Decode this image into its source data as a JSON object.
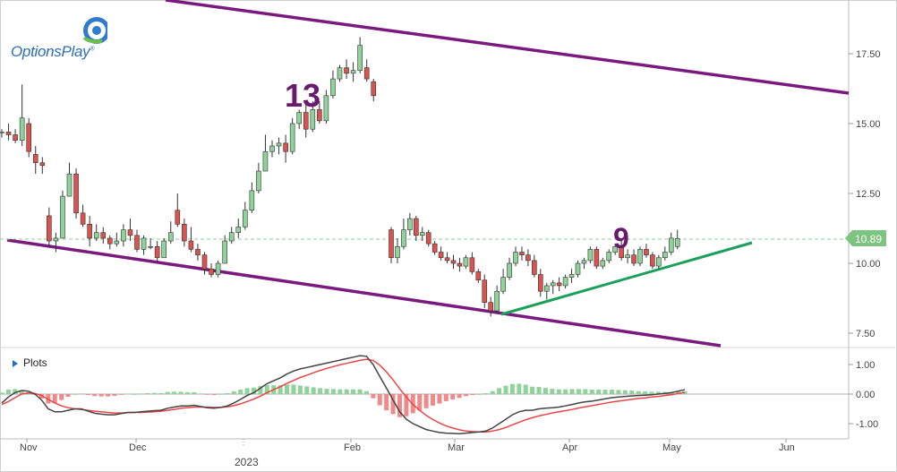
{
  "brand": {
    "name": "OptionsPlay",
    "trademark": "®"
  },
  "panel": {
    "plots_label": "Plots"
  },
  "chart_data": [
    {
      "type": "candlestick",
      "annotations": [
        "13",
        "9"
      ],
      "last_price": 10.89,
      "y_ticks": [
        "7.50",
        "10.00",
        "12.50",
        "15.00",
        "17.50"
      ],
      "ylim": [
        7.0,
        19.0
      ],
      "x_ticks": [
        "Nov",
        "Dec",
        "2023",
        "Feb",
        "Mar",
        "Apr",
        "May",
        "Jun"
      ],
      "year_label": "2023",
      "colors": {
        "up": "#8fd29a",
        "down": "#d9534f",
        "channel": "#7b1a7e",
        "trend": "#1aa05a",
        "last": "#7cc47f"
      },
      "candles": [
        [
          14.7,
          14.8,
          14.5,
          14.7
        ],
        [
          14.7,
          15.0,
          14.4,
          14.6
        ],
        [
          14.6,
          14.8,
          14.3,
          14.4
        ],
        [
          14.4,
          16.4,
          14.2,
          15.2
        ],
        [
          15.0,
          15.2,
          13.8,
          14.0
        ],
        [
          13.9,
          14.2,
          13.2,
          13.6
        ],
        [
          13.6,
          13.8,
          13.2,
          13.5
        ],
        [
          11.7,
          12.0,
          10.6,
          10.8
        ],
        [
          10.8,
          11.1,
          10.4,
          10.9
        ],
        [
          10.9,
          12.6,
          10.9,
          12.4
        ],
        [
          12.4,
          13.6,
          12.4,
          13.2
        ],
        [
          13.2,
          13.4,
          11.6,
          11.8
        ],
        [
          11.8,
          12.1,
          11.3,
          11.4
        ],
        [
          11.4,
          11.7,
          10.6,
          10.9
        ],
        [
          10.9,
          11.4,
          10.8,
          11.1
        ],
        [
          11.1,
          11.3,
          10.7,
          10.9
        ],
        [
          10.9,
          11.0,
          10.5,
          10.7
        ],
        [
          10.7,
          11.1,
          10.6,
          10.8
        ],
        [
          10.8,
          11.4,
          10.6,
          11.2
        ],
        [
          11.2,
          11.6,
          10.8,
          11.0
        ],
        [
          11.0,
          11.2,
          10.4,
          10.5
        ],
        [
          10.5,
          11.0,
          10.3,
          10.9
        ],
        [
          10.6,
          10.9,
          10.5,
          10.6
        ],
        [
          10.6,
          10.8,
          10.0,
          10.2
        ],
        [
          10.2,
          10.9,
          10.2,
          10.8
        ],
        [
          10.8,
          11.5,
          10.7,
          11.1
        ],
        [
          11.9,
          12.5,
          11.3,
          11.4
        ],
        [
          11.4,
          11.6,
          10.6,
          10.8
        ],
        [
          10.8,
          11.3,
          10.4,
          10.5
        ],
        [
          10.5,
          10.7,
          10.1,
          10.3
        ],
        [
          10.3,
          10.4,
          9.6,
          9.8
        ],
        [
          9.8,
          10.0,
          9.5,
          9.6
        ],
        [
          9.6,
          10.1,
          9.5,
          10.0
        ],
        [
          10.0,
          11.0,
          10.0,
          10.8
        ],
        [
          10.8,
          11.3,
          10.7,
          11.1
        ],
        [
          11.1,
          11.6,
          10.9,
          11.3
        ],
        [
          11.3,
          12.2,
          11.2,
          11.9
        ],
        [
          11.9,
          12.9,
          11.8,
          12.6
        ],
        [
          12.6,
          13.6,
          12.5,
          13.3
        ],
        [
          13.3,
          14.6,
          13.3,
          14.0
        ],
        [
          14.0,
          14.4,
          13.8,
          14.2
        ],
        [
          14.2,
          14.5,
          13.9,
          14.3
        ],
        [
          14.3,
          14.6,
          13.6,
          14.0
        ],
        [
          14.0,
          15.2,
          13.9,
          15.0
        ],
        [
          15.0,
          15.5,
          14.8,
          15.4
        ],
        [
          15.4,
          15.7,
          14.5,
          14.8
        ],
        [
          14.8,
          15.8,
          14.7,
          15.5
        ],
        [
          15.5,
          15.8,
          15.0,
          15.1
        ],
        [
          15.1,
          16.2,
          15.0,
          16.0
        ],
        [
          16.0,
          16.9,
          15.9,
          16.6
        ],
        [
          16.6,
          17.1,
          16.5,
          17.0
        ],
        [
          17.0,
          17.3,
          16.6,
          16.8
        ],
        [
          16.8,
          17.2,
          16.5,
          16.9
        ],
        [
          16.9,
          18.1,
          16.8,
          17.8
        ],
        [
          17.0,
          17.3,
          16.5,
          16.6
        ],
        [
          16.5,
          16.6,
          15.8,
          16.0
        ],
        [
          11.2,
          11.3,
          10.0,
          10.2
        ],
        [
          10.2,
          10.9,
          10.0,
          10.6
        ],
        [
          10.6,
          11.6,
          10.5,
          11.2
        ],
        [
          11.2,
          11.8,
          11.0,
          11.6
        ],
        [
          11.6,
          11.7,
          10.8,
          11.0
        ],
        [
          11.0,
          11.3,
          10.8,
          11.1
        ],
        [
          11.1,
          11.2,
          10.6,
          10.7
        ],
        [
          10.7,
          10.8,
          10.3,
          10.4
        ],
        [
          10.4,
          10.6,
          10.1,
          10.2
        ],
        [
          10.2,
          10.4,
          10.0,
          10.1
        ],
        [
          10.1,
          10.3,
          9.8,
          10.0
        ],
        [
          10.0,
          10.2,
          9.7,
          9.9
        ],
        [
          9.9,
          10.3,
          9.8,
          10.2
        ],
        [
          10.2,
          10.4,
          9.6,
          9.7
        ],
        [
          9.7,
          9.8,
          9.3,
          9.4
        ],
        [
          9.4,
          9.6,
          8.4,
          8.6
        ],
        [
          8.6,
          8.8,
          8.1,
          8.3
        ],
        [
          8.3,
          9.2,
          8.2,
          9.0
        ],
        [
          9.0,
          9.8,
          8.9,
          9.5
        ],
        [
          9.5,
          10.2,
          9.4,
          10.0
        ],
        [
          10.0,
          10.6,
          9.9,
          10.4
        ],
        [
          10.4,
          10.6,
          10.1,
          10.3
        ],
        [
          10.3,
          10.5,
          9.9,
          10.1
        ],
        [
          10.1,
          10.3,
          9.5,
          9.6
        ],
        [
          9.6,
          9.8,
          8.8,
          9.0
        ],
        [
          9.0,
          9.3,
          8.7,
          9.2
        ],
        [
          9.2,
          9.4,
          8.9,
          9.3
        ],
        [
          9.3,
          9.5,
          9.0,
          9.2
        ],
        [
          9.2,
          9.6,
          9.1,
          9.5
        ],
        [
          9.5,
          9.8,
          9.3,
          9.6
        ],
        [
          9.6,
          10.1,
          9.5,
          10.0
        ],
        [
          10.0,
          10.2,
          9.8,
          10.1
        ],
        [
          10.1,
          10.6,
          10.0,
          10.5
        ],
        [
          10.5,
          10.6,
          9.8,
          9.9
        ],
        [
          9.9,
          10.2,
          9.8,
          10.1
        ],
        [
          10.1,
          10.5,
          10.0,
          10.4
        ],
        [
          10.4,
          10.7,
          10.3,
          10.6
        ],
        [
          10.6,
          10.8,
          10.1,
          10.2
        ],
        [
          10.2,
          10.5,
          10.0,
          10.3
        ],
        [
          10.3,
          10.5,
          9.9,
          10.0
        ],
        [
          10.0,
          10.6,
          9.9,
          10.5
        ],
        [
          10.5,
          10.7,
          10.2,
          10.3
        ],
        [
          10.3,
          10.4,
          9.8,
          9.9
        ],
        [
          9.9,
          10.3,
          9.8,
          10.2
        ],
        [
          10.2,
          10.6,
          10.1,
          10.4
        ],
        [
          10.4,
          11.1,
          10.3,
          10.9
        ],
        [
          10.6,
          11.2,
          10.5,
          10.89
        ]
      ]
    },
    {
      "type": "macd",
      "y_ticks": [
        "1.00",
        "0.00",
        "-1.00"
      ],
      "ylim": [
        -1.6,
        1.5
      ],
      "colors": {
        "macd": "#444444",
        "signal": "#ee4444",
        "hist_up": "#8fd29a",
        "hist_down": "#f08a8a",
        "zero": "#aaaaaa"
      },
      "macd": [
        -0.3,
        -0.1,
        0.05,
        0.12,
        0.1,
        0.0,
        -0.2,
        -0.5,
        -0.6,
        -0.6,
        -0.55,
        -0.5,
        -0.5,
        -0.58,
        -0.65,
        -0.68,
        -0.7,
        -0.7,
        -0.66,
        -0.62,
        -0.62,
        -0.6,
        -0.58,
        -0.56,
        -0.55,
        -0.48,
        -0.44,
        -0.4,
        -0.4,
        -0.38,
        -0.42,
        -0.46,
        -0.48,
        -0.45,
        -0.4,
        -0.3,
        -0.18,
        -0.05,
        0.05,
        0.2,
        0.35,
        0.45,
        0.55,
        0.68,
        0.78,
        0.85,
        0.9,
        0.95,
        1.0,
        1.05,
        1.1,
        1.15,
        1.2,
        1.25,
        1.3,
        1.28,
        1.0,
        0.6,
        0.2,
        -0.2,
        -0.6,
        -0.85,
        -1.0,
        -1.1,
        -1.2,
        -1.25,
        -1.3,
        -1.32,
        -1.33,
        -1.34,
        -1.32,
        -1.3,
        -1.28,
        -1.25,
        -1.15,
        -1.0,
        -0.85,
        -0.7,
        -0.6,
        -0.55,
        -0.55,
        -0.5,
        -0.48,
        -0.46,
        -0.44,
        -0.4,
        -0.35,
        -0.3,
        -0.26,
        -0.24,
        -0.2,
        -0.16,
        -0.12,
        -0.1,
        -0.08,
        -0.06,
        -0.05,
        -0.04,
        -0.02,
        0.0,
        0.02,
        0.05,
        0.1,
        0.15
      ],
      "signal": [
        -0.35,
        -0.25,
        -0.12,
        0.0,
        0.04,
        0.02,
        -0.05,
        -0.18,
        -0.3,
        -0.4,
        -0.46,
        -0.5,
        -0.52,
        -0.55,
        -0.58,
        -0.6,
        -0.62,
        -0.64,
        -0.64,
        -0.63,
        -0.62,
        -0.62,
        -0.61,
        -0.6,
        -0.58,
        -0.55,
        -0.52,
        -0.48,
        -0.46,
        -0.44,
        -0.44,
        -0.44,
        -0.45,
        -0.45,
        -0.43,
        -0.39,
        -0.33,
        -0.25,
        -0.17,
        -0.07,
        0.05,
        0.15,
        0.25,
        0.36,
        0.46,
        0.56,
        0.64,
        0.72,
        0.8,
        0.87,
        0.93,
        0.99,
        1.04,
        1.09,
        1.14,
        1.18,
        1.14,
        0.98,
        0.75,
        0.48,
        0.18,
        -0.1,
        -0.35,
        -0.55,
        -0.72,
        -0.86,
        -0.98,
        -1.08,
        -1.15,
        -1.21,
        -1.25,
        -1.27,
        -1.28,
        -1.28,
        -1.25,
        -1.2,
        -1.13,
        -1.04,
        -0.95,
        -0.87,
        -0.8,
        -0.74,
        -0.69,
        -0.64,
        -0.6,
        -0.56,
        -0.52,
        -0.47,
        -0.43,
        -0.39,
        -0.35,
        -0.31,
        -0.27,
        -0.24,
        -0.21,
        -0.18,
        -0.15,
        -0.13,
        -0.1,
        -0.08,
        -0.05,
        -0.02,
        0.02,
        0.06
      ]
    }
  ]
}
